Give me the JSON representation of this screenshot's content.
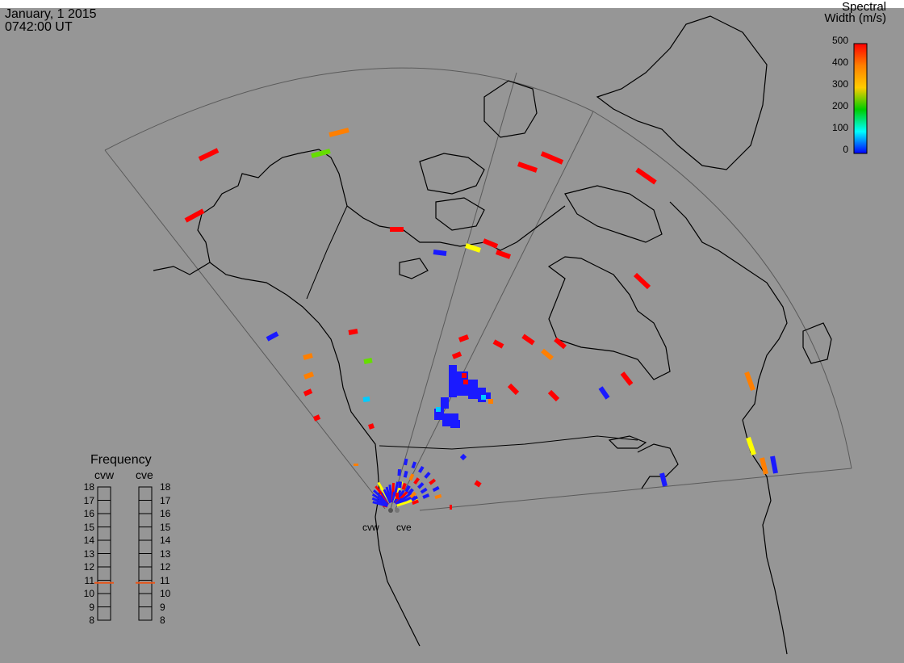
{
  "header": {
    "date": "January, 1 2015",
    "time": "0742:00 UT"
  },
  "colorbar": {
    "title_line1": "Spectral",
    "title_line2": "Width (m/s)",
    "ticks": [
      "500",
      "400",
      "300",
      "200",
      "100",
      "0"
    ],
    "range": [
      0,
      500
    ],
    "colors": [
      "#ff0000",
      "#ff7f00",
      "#ffff00",
      "#00ff00",
      "#00ffff",
      "#0000ff"
    ]
  },
  "frequency_panel": {
    "title": "Frequency",
    "left_label": "cvw",
    "right_label": "cve",
    "ticks": [
      "18",
      "17",
      "16",
      "15",
      "14",
      "13",
      "12",
      "11",
      "10",
      "9",
      "8"
    ],
    "cvw_value": 10.8,
    "cve_value": 10.8,
    "marker_color": "#e8561a"
  },
  "radar_sites": {
    "west": "cvw",
    "east": "cve"
  },
  "map": {
    "background": "#969696",
    "coastline_color": "#000000",
    "fov_color": "#555555"
  }
}
